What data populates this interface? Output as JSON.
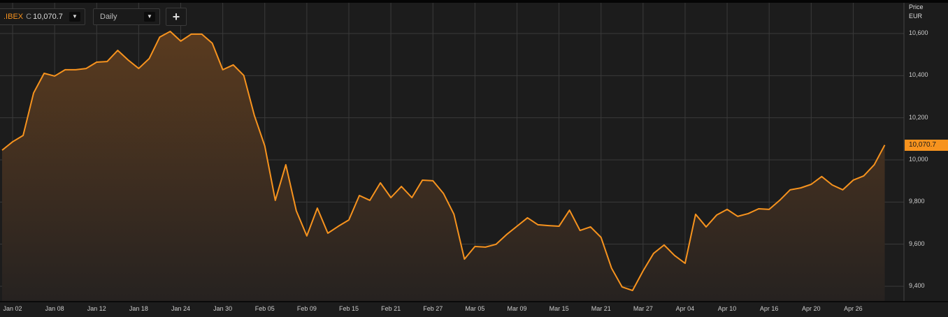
{
  "toolbar": {
    "symbol": ".IBEX",
    "close_prefix": "C",
    "close_value": "10,070.7",
    "interval": "Daily",
    "add_label": "+",
    "dropdown_icon": "▼"
  },
  "chart_data": {
    "type": "area",
    "title": "",
    "ylabel": "Price",
    "yunit": "EUR",
    "ylim": [
      9350,
      10680
    ],
    "y_ticks": [
      "9,400",
      "9,600",
      "9,800",
      "10,000",
      "10,200",
      "10,400",
      "10,600"
    ],
    "y_tick_values": [
      9400,
      9600,
      9800,
      10000,
      10200,
      10400,
      10600
    ],
    "x_ticks": [
      "Jan 02",
      "Jan 08",
      "Jan 12",
      "Jan 18",
      "Jan 24",
      "Jan 30",
      "Feb 05",
      "Feb 09",
      "Feb 15",
      "Feb 21",
      "Feb 27",
      "Mar 05",
      "Mar 09",
      "Mar 15",
      "Mar 21",
      "Mar 27",
      "Apr 04",
      "Apr 10",
      "Apr 16",
      "Apr 20",
      "Apr 26"
    ],
    "last_value_label": "10,070.7",
    "grid": true,
    "colors": {
      "line": "#f7931e",
      "fill_top": "#5a3b1f",
      "fill_bottom": "#262220",
      "background": "#1c1c1c",
      "grid": "#3a3a3a"
    },
    "values": [
      10046,
      10086,
      10116,
      10318,
      10411,
      10398,
      10428,
      10428,
      10434,
      10464,
      10467,
      10520,
      10474,
      10434,
      10481,
      10583,
      10610,
      10564,
      10597,
      10597,
      10554,
      10428,
      10451,
      10401,
      10212,
      10066,
      9808,
      9977,
      9758,
      9639,
      9771,
      9652,
      9685,
      9715,
      9831,
      9808,
      9891,
      9821,
      9874,
      9821,
      9904,
      9901,
      9841,
      9742,
      9529,
      9589,
      9586,
      9599,
      9645,
      9685,
      9725,
      9692,
      9688,
      9685,
      9761,
      9665,
      9682,
      9632,
      9486,
      9397,
      9380,
      9473,
      9556,
      9596,
      9546,
      9509,
      9742,
      9682,
      9738,
      9765,
      9732,
      9745,
      9768,
      9765,
      9808,
      9858,
      9867,
      9884,
      9921,
      9881,
      9858,
      9904,
      9924,
      9977,
      10070.7
    ]
  }
}
